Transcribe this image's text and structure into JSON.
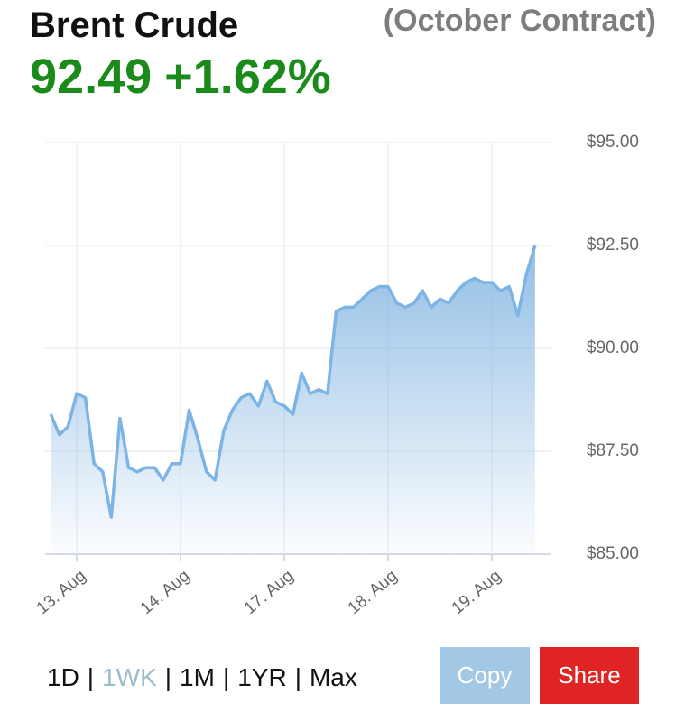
{
  "chart_data": {
    "type": "line",
    "title": "Brent Crude",
    "subtitle": "(October Contract)",
    "price": "92.49",
    "change": "+1.62%",
    "categories": [
      null,
      null,
      null,
      "13. Aug",
      null,
      null,
      null,
      null,
      null,
      null,
      null,
      null,
      null,
      null,
      null,
      "14. Aug",
      null,
      null,
      null,
      null,
      null,
      null,
      null,
      null,
      null,
      null,
      null,
      "17. Aug",
      null,
      null,
      null,
      null,
      null,
      null,
      null,
      null,
      null,
      null,
      null,
      "18. Aug",
      null,
      null,
      null,
      null,
      null,
      null,
      null,
      null,
      null,
      null,
      null,
      "19. Aug",
      null,
      null,
      null,
      null,
      null
    ],
    "values": [
      88.4,
      87.9,
      88.1,
      88.9,
      88.8,
      87.2,
      87.0,
      85.9,
      88.3,
      87.1,
      87.0,
      87.1,
      87.1,
      86.8,
      87.2,
      87.2,
      88.5,
      87.8,
      87.0,
      86.8,
      88.0,
      88.5,
      88.8,
      88.9,
      88.6,
      89.2,
      88.7,
      88.6,
      88.4,
      89.4,
      88.9,
      89.0,
      88.9,
      90.9,
      91.0,
      91.0,
      91.2,
      91.4,
      91.5,
      91.5,
      91.1,
      91.0,
      91.1,
      91.4,
      91.0,
      91.2,
      91.1,
      91.4,
      91.6,
      91.7,
      91.6,
      91.6,
      91.4,
      91.5,
      90.8,
      91.8,
      92.5
    ],
    "color": "#7db4e6",
    "ylim": [
      85,
      95
    ],
    "yticks": [
      {
        "value": 85,
        "label": "$85.00"
      },
      {
        "value": 87.5,
        "label": "$87.50"
      },
      {
        "value": 90,
        "label": "$90.00"
      },
      {
        "value": 92.5,
        "label": "$92.50"
      },
      {
        "value": 95,
        "label": "$95.00"
      }
    ],
    "grid": true
  },
  "controls": {
    "ranges": [
      "1D",
      "1WK",
      "1M",
      "1YR",
      "Max"
    ],
    "active_range": 1,
    "buttons": [
      "Copy",
      "Share"
    ]
  }
}
